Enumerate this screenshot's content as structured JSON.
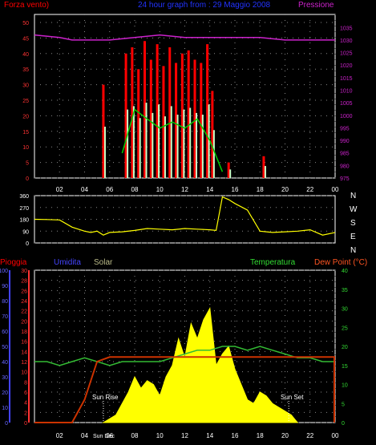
{
  "colors": {
    "wind": "#ff0000",
    "gust_fill": "#c8ffc8",
    "avg": "#00cc00",
    "pressure": "#cc22cc",
    "direction": "#ffff00",
    "temperature": "#33bb33",
    "solar": "#ffff00",
    "dewpoint": "#cc3300",
    "rain": "#ff0000",
    "humidity_axis": "#4444ff",
    "title": "#2233ff",
    "grid": "#888888",
    "axis_text": "#ffffff",
    "sun_text": "#ffffff"
  },
  "header": {
    "wind_label": "Forza vento)",
    "title": "24 hour graph from : 29 Maggio 2008",
    "pressure_label": "Pressione"
  },
  "direction_letters": [
    "N",
    "W",
    "S",
    "E",
    "N"
  ],
  "bottom_header": {
    "rain_label": "Pioggia",
    "humidity_label": "Umidita",
    "solar_label": "Solar",
    "temperature_label": "Temperatura",
    "dewpoint_label": "Dew Point (°C)"
  },
  "annotations": {
    "sunrise": "Sun Rise",
    "sunset": "Sun Set",
    "sunrise_axis": "Sun Dec"
  },
  "chart_data": [
    {
      "type": "line",
      "name": "wind",
      "x_ticks": [
        "02",
        "04",
        "06",
        "08",
        "10",
        "12",
        "14",
        "16",
        "18",
        "20",
        "22",
        "00"
      ],
      "left_axis": {
        "ticks": [
          0,
          5,
          10,
          15,
          20,
          25,
          30,
          35,
          40,
          45,
          50
        ],
        "ylim": [
          0,
          50
        ]
      },
      "right_axis": {
        "ticks": [
          975,
          980,
          985,
          990,
          995,
          1000,
          1005,
          1010,
          1015,
          1020,
          1025,
          1030,
          1035
        ],
        "ylim": [
          975,
          1037
        ]
      },
      "pressure": {
        "x": [
          0,
          2,
          3,
          4,
          6,
          8,
          10,
          12,
          14,
          16,
          18,
          20,
          22,
          24
        ],
        "y": [
          1032,
          1031,
          1030,
          1030,
          1030,
          1031,
          1032,
          1031,
          1031,
          1031,
          1031,
          1030,
          1030,
          1030
        ]
      },
      "speed_peaks": {
        "x": [
          5.5,
          7.3,
          7.8,
          8.3,
          8.8,
          9.3,
          9.8,
          10.3,
          10.8,
          11.3,
          11.8,
          12.3,
          12.8,
          13.3,
          13.8,
          14.2,
          15.5,
          18.3
        ],
        "y": [
          30,
          40,
          42,
          35,
          44,
          38,
          43,
          36,
          42,
          37,
          40,
          41,
          38,
          37,
          43,
          28,
          5,
          7
        ]
      },
      "average": {
        "x": [
          7,
          8,
          9,
          10,
          11,
          12,
          13,
          14,
          15
        ],
        "y": [
          8,
          22,
          19,
          16,
          18,
          16,
          19,
          12,
          2
        ]
      }
    },
    {
      "type": "scatter",
      "name": "direction",
      "left_axis": {
        "ticks": [
          0,
          90,
          180,
          270,
          360
        ],
        "ylim": [
          0,
          360
        ]
      },
      "x": [
        0,
        1,
        2,
        3,
        4,
        4.5,
        5,
        5.5,
        6,
        7,
        8,
        9,
        10,
        11,
        12,
        13,
        14,
        14.5,
        15,
        15.5,
        16,
        17,
        18,
        19,
        20,
        21,
        22,
        23,
        24
      ],
      "y": [
        180,
        178,
        175,
        120,
        90,
        80,
        90,
        60,
        80,
        85,
        95,
        110,
        105,
        100,
        110,
        105,
        100,
        95,
        350,
        330,
        300,
        250,
        90,
        80,
        85,
        90,
        100,
        60,
        80
      ]
    },
    {
      "type": "area",
      "name": "temperature_solar",
      "x_ticks": [
        "02",
        "04",
        "06",
        "08",
        "10",
        "12",
        "14",
        "16",
        "18",
        "20",
        "22",
        "00"
      ],
      "rain_axis": {
        "ticks": [
          0,
          2,
          4,
          6,
          8,
          10,
          12,
          14,
          16,
          18,
          20,
          22,
          24,
          26,
          28,
          30
        ],
        "ylim": [
          0,
          30
        ]
      },
      "humidity_axis": {
        "ticks": [
          0,
          10,
          20,
          30,
          40,
          50,
          60,
          70,
          80,
          90,
          100
        ],
        "ylim": [
          0,
          100
        ]
      },
      "temp_axis": {
        "ticks": [
          0,
          5,
          10,
          15,
          20,
          25,
          30,
          35,
          40
        ],
        "ylim": [
          0,
          40
        ]
      },
      "temperature": {
        "x": [
          0,
          1,
          2,
          3,
          4,
          5,
          6,
          7,
          8,
          9,
          10,
          11,
          12,
          13,
          14,
          15,
          16,
          17,
          18,
          19,
          20,
          21,
          22,
          23,
          24
        ],
        "y": [
          16,
          16,
          15,
          16,
          17,
          16,
          15,
          16,
          16,
          16,
          16,
          17,
          18,
          19,
          19,
          20,
          20,
          19,
          20,
          19,
          18,
          17,
          17,
          16,
          16
        ]
      },
      "humidity": {
        "x": [
          0,
          3,
          4,
          5,
          6,
          7,
          8,
          24
        ],
        "y": [
          0,
          0,
          15,
          40,
          43,
          43,
          43,
          43
        ]
      },
      "solar": {
        "x": [
          5.5,
          6.5,
          7,
          7.5,
          8,
          8.5,
          9,
          9.5,
          10,
          10.5,
          11,
          11.5,
          12,
          12.5,
          13,
          13.5,
          14,
          14.5,
          15,
          15.5,
          16,
          16.5,
          17,
          17.5,
          18,
          18.5,
          19,
          19.5,
          20,
          20.5,
          21
        ],
        "y": [
          0,
          2,
          5,
          8,
          12,
          9,
          11,
          10,
          7,
          12,
          15,
          22,
          17,
          26,
          22,
          27,
          30,
          15,
          18,
          20,
          14,
          10,
          6,
          5,
          8,
          7,
          5,
          4,
          3,
          2,
          0
        ]
      }
    }
  ]
}
